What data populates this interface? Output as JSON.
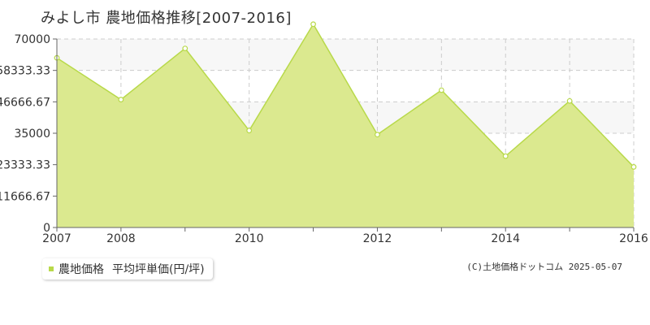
{
  "header": {
    "title": "みよし市 農地価格推移[2007-2016]"
  },
  "legend": {
    "series_label": "農地価格",
    "unit_label": "平均坪単価(円/坪)"
  },
  "credit": "(C)土地価格ドットコム 2025-05-07",
  "colors": {
    "fill": "#dbe98f",
    "line": "#b8d94a",
    "marker_fill": "#ffffff",
    "grid": "#cccccc",
    "band": "#f7f7f7",
    "axis": "#666666",
    "legend_swatch": "#b8d94a"
  },
  "chart_data": {
    "type": "area",
    "x": [
      2007,
      2008,
      2009,
      2010,
      2011,
      2012,
      2013,
      2014,
      2015,
      2016
    ],
    "series": [
      {
        "name": "農地価格",
        "values": [
          63000,
          47500,
          66500,
          36000,
          75500,
          34500,
          51000,
          26500,
          47000,
          22500
        ]
      }
    ],
    "ylim": [
      0,
      70000
    ],
    "yticks": [
      "0",
      "11666.67",
      "23333.33",
      "35000",
      "46666.67",
      "58333.33",
      "70000"
    ],
    "xticks": [
      "2007",
      "2008",
      "2010",
      "2012",
      "2014",
      "2016"
    ],
    "xlim": [
      2007,
      2016
    ],
    "grid": true,
    "legend_position": "bottom-left"
  }
}
